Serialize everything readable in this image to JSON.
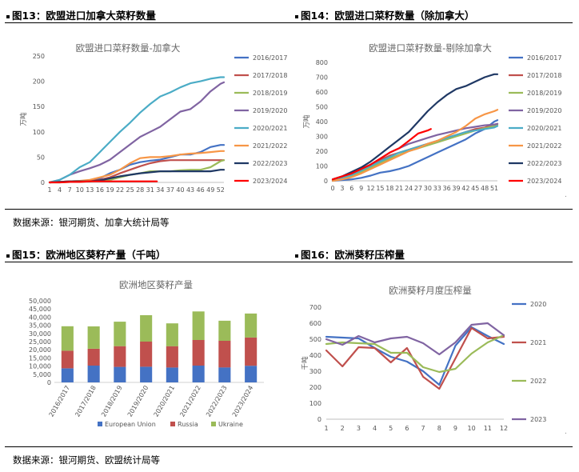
{
  "header": {
    "fig13": "图13：欧盟进口加拿大菜籽数量",
    "fig14": "图14：欧盟进口菜籽数量（除加拿大）",
    "fig15": "图15：欧洲地区葵籽产量（千吨）",
    "fig16": "图16：欧洲葵籽压榨量"
  },
  "sources": {
    "top": "数据来源：银河期货、加拿大统计局等",
    "bottom": "数据来源：银河期货、欧盟统计局等"
  },
  "chart_data": [
    {
      "id": "c13",
      "type": "line",
      "title": "欧盟进口菜籽数量-加拿大",
      "ylabel": "万吨",
      "ylim": [
        0,
        250
      ],
      "yticks": [
        0,
        50,
        100,
        150,
        200,
        250
      ],
      "xlim": [
        1,
        53
      ],
      "xticks": [
        1,
        4,
        7,
        10,
        13,
        16,
        19,
        22,
        25,
        28,
        31,
        34,
        37,
        40,
        43,
        46,
        49,
        52
      ],
      "legend_position": "right",
      "series": [
        {
          "name": "2016/2017",
          "color": "#4472c4",
          "x": [
            1,
            4,
            7,
            10,
            13,
            16,
            19,
            22,
            25,
            28,
            31,
            34,
            37,
            40,
            43,
            46,
            49,
            52,
            53
          ],
          "values": [
            0,
            1,
            2,
            3,
            3,
            8,
            18,
            25,
            35,
            40,
            43,
            45,
            50,
            55,
            55,
            60,
            70,
            74,
            74
          ]
        },
        {
          "name": "2017/2018",
          "color": "#c0504d",
          "x": [
            1,
            4,
            7,
            10,
            13,
            16,
            19,
            22,
            25,
            28,
            31,
            34,
            37,
            40,
            43,
            46,
            49,
            52,
            53
          ],
          "values": [
            0,
            1,
            2,
            2,
            3,
            5,
            10,
            18,
            25,
            32,
            38,
            42,
            44,
            44,
            44,
            44,
            44,
            44,
            44
          ]
        },
        {
          "name": "2018/2019",
          "color": "#9bbb59",
          "x": [
            1,
            4,
            7,
            10,
            13,
            16,
            19,
            22,
            25,
            28,
            31,
            34,
            37,
            40,
            43,
            46,
            49,
            52,
            53
          ],
          "values": [
            0,
            0,
            1,
            1,
            2,
            3,
            5,
            10,
            15,
            18,
            22,
            22,
            22,
            24,
            25,
            25,
            30,
            42,
            44
          ]
        },
        {
          "name": "2019/2020",
          "color": "#8064a2",
          "x": [
            1,
            4,
            7,
            10,
            13,
            16,
            19,
            22,
            25,
            28,
            31,
            34,
            37,
            40,
            43,
            46,
            49,
            52,
            53
          ],
          "values": [
            0,
            5,
            15,
            22,
            28,
            35,
            45,
            60,
            75,
            90,
            100,
            110,
            125,
            140,
            145,
            160,
            180,
            195,
            198
          ]
        },
        {
          "name": "2020/2021",
          "color": "#4bacc6",
          "x": [
            1,
            4,
            7,
            10,
            13,
            16,
            19,
            22,
            25,
            28,
            31,
            34,
            37,
            40,
            43,
            46,
            49,
            52,
            53
          ],
          "values": [
            0,
            5,
            15,
            30,
            40,
            60,
            80,
            100,
            118,
            138,
            155,
            170,
            178,
            188,
            196,
            200,
            205,
            208,
            208
          ]
        },
        {
          "name": "2021/2022",
          "color": "#f79646",
          "x": [
            1,
            4,
            7,
            10,
            13,
            16,
            19,
            22,
            25,
            28,
            31,
            34,
            37,
            40,
            43,
            46,
            49,
            52,
            53
          ],
          "values": [
            0,
            1,
            2,
            3,
            5,
            10,
            15,
            25,
            38,
            48,
            50,
            50,
            52,
            55,
            57,
            58,
            60,
            62,
            62
          ]
        },
        {
          "name": "2022/2023",
          "color": "#1f3864",
          "x": [
            1,
            4,
            7,
            10,
            13,
            16,
            19,
            22,
            25,
            28,
            31,
            34,
            37,
            40,
            43,
            46,
            49,
            52,
            53
          ],
          "values": [
            0,
            1,
            2,
            2,
            2,
            4,
            8,
            12,
            15,
            18,
            20,
            22,
            22,
            22,
            22,
            22,
            22,
            25,
            25
          ]
        },
        {
          "name": "2023/2024",
          "color": "#ff0000",
          "x": [
            1,
            4,
            7,
            10,
            13,
            16,
            19,
            22,
            25,
            28,
            31,
            33
          ],
          "values": [
            0,
            0,
            1,
            1,
            2,
            2,
            2,
            2,
            2,
            2,
            2,
            2
          ]
        }
      ]
    },
    {
      "id": "c14",
      "type": "line",
      "title": "欧盟进口菜籽数量-剔除加拿大",
      "ylabel": "万吨",
      "ylim": [
        0,
        800
      ],
      "yticks": [
        0,
        100,
        200,
        300,
        400,
        500,
        600,
        700,
        800
      ],
      "xlim": [
        0,
        52
      ],
      "xticks": [
        0,
        3,
        6,
        9,
        12,
        15,
        18,
        21,
        24,
        27,
        30,
        33,
        36,
        39,
        42,
        45,
        48,
        51
      ],
      "legend_position": "right",
      "series": [
        {
          "name": "2016/2017",
          "color": "#4472c4",
          "x": [
            0,
            3,
            6,
            9,
            12,
            15,
            18,
            21,
            24,
            27,
            30,
            33,
            36,
            39,
            42,
            45,
            48,
            51,
            52
          ],
          "values": [
            0,
            5,
            10,
            20,
            35,
            55,
            65,
            80,
            100,
            130,
            160,
            190,
            220,
            250,
            280,
            320,
            350,
            400,
            410
          ]
        },
        {
          "name": "2017/2018",
          "color": "#c0504d",
          "x": [
            0,
            3,
            6,
            9,
            12,
            15,
            18,
            21,
            24,
            27,
            30,
            33,
            36,
            39,
            42,
            45,
            48,
            51,
            52
          ],
          "values": [
            10,
            30,
            50,
            80,
            110,
            140,
            170,
            190,
            210,
            230,
            250,
            270,
            290,
            310,
            330,
            350,
            360,
            380,
            385
          ]
        },
        {
          "name": "2018/2019",
          "color": "#9bbb59",
          "x": [
            0,
            3,
            6,
            9,
            12,
            15,
            18,
            21,
            24,
            27,
            30,
            33,
            36,
            39,
            42,
            45,
            48,
            51,
            52
          ],
          "values": [
            0,
            15,
            35,
            60,
            90,
            120,
            150,
            175,
            200,
            220,
            240,
            260,
            280,
            300,
            320,
            340,
            355,
            370,
            380
          ]
        },
        {
          "name": "2019/2020",
          "color": "#8064a2",
          "x": [
            0,
            3,
            6,
            9,
            12,
            15,
            18,
            21,
            24,
            27,
            30,
            33,
            36,
            39,
            42,
            45,
            48,
            51,
            52
          ],
          "values": [
            0,
            20,
            50,
            80,
            110,
            150,
            190,
            220,
            250,
            270,
            290,
            310,
            325,
            340,
            355,
            365,
            375,
            380,
            385
          ]
        },
        {
          "name": "2020/2021",
          "color": "#4bacc6",
          "x": [
            0,
            3,
            6,
            9,
            12,
            15,
            18,
            21,
            24,
            27,
            30,
            33,
            36,
            39,
            42,
            45,
            48,
            51,
            52
          ],
          "values": [
            0,
            20,
            40,
            70,
            100,
            130,
            160,
            190,
            210,
            230,
            250,
            270,
            290,
            310,
            330,
            340,
            350,
            360,
            370
          ]
        },
        {
          "name": "2021/2022",
          "color": "#f79646",
          "x": [
            0,
            3,
            6,
            9,
            12,
            15,
            18,
            21,
            24,
            27,
            30,
            33,
            36,
            39,
            42,
            45,
            48,
            51,
            52
          ],
          "values": [
            0,
            10,
            25,
            50,
            80,
            110,
            140,
            170,
            200,
            220,
            250,
            270,
            300,
            330,
            370,
            420,
            450,
            470,
            480
          ]
        },
        {
          "name": "2022/2023",
          "color": "#1f3864",
          "x": [
            0,
            3,
            6,
            9,
            12,
            15,
            18,
            21,
            24,
            27,
            30,
            33,
            36,
            39,
            42,
            45,
            48,
            51,
            52
          ],
          "values": [
            10,
            30,
            60,
            90,
            130,
            180,
            230,
            280,
            330,
            400,
            470,
            530,
            580,
            620,
            640,
            670,
            700,
            720,
            720
          ]
        },
        {
          "name": "2023/2024",
          "color": "#ff0000",
          "x": [
            0,
            3,
            6,
            9,
            12,
            15,
            18,
            21,
            24,
            27,
            30,
            31
          ],
          "values": [
            10,
            30,
            50,
            80,
            110,
            150,
            190,
            220,
            270,
            320,
            340,
            350
          ]
        }
      ]
    },
    {
      "id": "c15",
      "type": "bar",
      "stacked": true,
      "title": "欧洲地区葵籽产量",
      "ylim": [
        0,
        50000
      ],
      "yticks": [
        0,
        5000,
        10000,
        15000,
        20000,
        25000,
        30000,
        35000,
        40000,
        45000,
        50000
      ],
      "ytick_labels": [
        "0",
        "5,000",
        "10,000",
        "15,000",
        "20,000",
        "25,000",
        "30,000",
        "35,000",
        "40,000",
        "45,000",
        "50,000"
      ],
      "categories": [
        "2016/2017",
        "2017/2018",
        "2018/2019",
        "2019/2020",
        "2020/2021",
        "2021/2022",
        "2022/2023",
        "2023/2024"
      ],
      "legend_position": "bottom",
      "series": [
        {
          "name": "European Union",
          "color": "#4472c4",
          "values": [
            8600,
            10300,
            9500,
            9600,
            9100,
            10300,
            9200,
            10200
          ]
        },
        {
          "name": "Russia",
          "color": "#c0504d",
          "values": [
            10800,
            10300,
            12700,
            15400,
            13100,
            15700,
            16300,
            17300
          ]
        },
        {
          "name": "Ukraine",
          "color": "#9bbb59",
          "values": [
            15000,
            13700,
            15000,
            16200,
            14000,
            17500,
            12300,
            14700
          ]
        }
      ]
    },
    {
      "id": "c16",
      "type": "line",
      "title": "欧洲葵籽月度压榨量",
      "ylabel": "千吨",
      "ylim": [
        0,
        700
      ],
      "yticks": [
        0,
        100,
        200,
        300,
        400,
        500,
        600,
        700
      ],
      "categories": [
        "1",
        "2",
        "3",
        "4",
        "5",
        "6",
        "7",
        "8",
        "9",
        "10",
        "11",
        "12"
      ],
      "legend_position": "right",
      "series": [
        {
          "name": "2020",
          "color": "#4472c4",
          "values": [
            515,
            510,
            505,
            445,
            390,
            360,
            300,
            215,
            460,
            575,
            520,
            470
          ]
        },
        {
          "name": "2021",
          "color": "#c0504d",
          "values": [
            430,
            330,
            450,
            445,
            355,
            445,
            265,
            190,
            380,
            570,
            505,
            515
          ]
        },
        {
          "name": "2022",
          "color": "#9bbb59",
          "values": [
            470,
            480,
            475,
            470,
            415,
            415,
            325,
            295,
            315,
            410,
            480,
            525
          ]
        },
        {
          "name": "2023",
          "color": "#8064a2",
          "values": [
            500,
            465,
            520,
            480,
            505,
            515,
            475,
            405,
            480,
            590,
            600,
            525
          ]
        }
      ]
    }
  ]
}
